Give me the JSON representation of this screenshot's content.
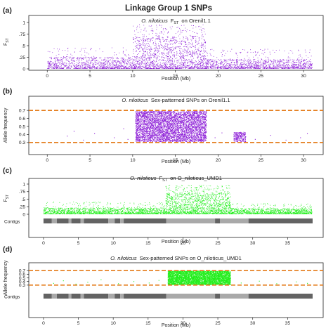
{
  "figure_title": "Linkage Group 1 SNPs",
  "colors": {
    "purple": "#8a19d6",
    "green": "#22ee1c",
    "orange": "#e47a18",
    "contig_dark": "#636363",
    "contig_light": "#a9a9a9"
  },
  "chart_data": [
    {
      "panel": "(a)",
      "type": "scatter",
      "title_italic": "O. niloticus",
      "title_rest": "on Orenil1.1",
      "ylabel": "F",
      "ylabel_sub": "ST",
      "xlabel": "Position (Mb)",
      "xlim": [
        -1.5,
        31.8
      ],
      "ylim": [
        0,
        1
      ],
      "xticks": [
        0,
        5,
        10,
        15,
        20,
        25,
        30
      ],
      "yticks": [
        0,
        0.25,
        0.5,
        0.75,
        1
      ],
      "ytick_labels": [
        "0",
        ".25",
        ".5",
        ".75",
        "1"
      ],
      "series_color": "purple",
      "density_profile": [
        {
          "range": [
            0,
            10
          ],
          "typical_max": 0.25,
          "peak_max": 0.45
        },
        {
          "range": [
            10,
            18.5
          ],
          "typical_max": 0.7,
          "peak_max": 0.95
        },
        {
          "range": [
            18.5,
            31
          ],
          "typical_max": 0.2,
          "peak_max": 0.42
        }
      ]
    },
    {
      "panel": "(b)",
      "type": "scatter",
      "title_italic": "O. niloticus",
      "title_rest": "Sex-patterned SNPs on Orenil1.1",
      "ylabel": "Allele frequency",
      "xlabel": "Position (Mb)",
      "xlim": [
        -1.5,
        31.8
      ],
      "ylim": [
        0.22,
        0.78
      ],
      "xticks": [
        0,
        5,
        10,
        15,
        20,
        25,
        30
      ],
      "yticks": [
        0.3,
        0.4,
        0.5,
        0.6,
        0.7
      ],
      "ytick_labels": [
        "0.3",
        "0.4",
        "0.5",
        "0.6",
        "0.7"
      ],
      "threshold_lines": [
        0.3,
        0.7
      ],
      "series_color": "purple",
      "dense_blocks": [
        {
          "x": [
            10.3,
            18.6
          ],
          "y": [
            0.31,
            0.69
          ]
        },
        {
          "x": [
            21.8,
            23.2
          ],
          "y": [
            0.31,
            0.43
          ]
        }
      ],
      "sparse_points": [
        [
          2.3,
          0.38
        ],
        [
          3.1,
          0.44
        ],
        [
          4.2,
          0.33
        ],
        [
          5.5,
          0.41
        ],
        [
          7.8,
          0.36
        ],
        [
          8.9,
          0.47
        ],
        [
          9.4,
          0.34
        ],
        [
          19.6,
          0.36
        ],
        [
          20.4,
          0.42
        ],
        [
          24.3,
          0.34
        ],
        [
          26.1,
          0.39
        ],
        [
          27.9,
          0.33
        ],
        [
          29.6,
          0.36
        ],
        [
          30.4,
          0.41
        ]
      ]
    },
    {
      "panel": "(c)",
      "type": "scatter",
      "title_italic": "O. niloticus",
      "title_rest": "on O_niloticus_UMD1",
      "ylabel": "F",
      "ylabel_sub": "ST",
      "xlabel": "Position (Mb)",
      "contigs_label": "Contigs",
      "xlim": [
        -1.3,
        39.5
      ],
      "ylim": [
        0,
        1
      ],
      "xticks": [
        0,
        5,
        10,
        15,
        20,
        25,
        30,
        35
      ],
      "yticks": [
        0,
        0.25,
        0.5,
        0.75,
        1
      ],
      "ytick_labels": [
        "0",
        ".25",
        ".5",
        ".75",
        "1"
      ],
      "series_color": "green",
      "density_profile": [
        {
          "range": [
            0,
            17.5
          ],
          "typical_max": 0.2,
          "peak_max": 0.4
        },
        {
          "range": [
            17.5,
            26.8
          ],
          "typical_max": 0.7,
          "peak_max": 0.95
        },
        {
          "range": [
            26.8,
            38.5
          ],
          "typical_max": 0.18,
          "peak_max": 0.35
        }
      ],
      "contigs": [
        {
          "start": 0.0,
          "end": 1.2,
          "shade": "dark"
        },
        {
          "start": 1.2,
          "end": 1.9,
          "shade": "light"
        },
        {
          "start": 1.9,
          "end": 3.6,
          "shade": "dark"
        },
        {
          "start": 3.6,
          "end": 4.0,
          "shade": "light"
        },
        {
          "start": 4.0,
          "end": 5.3,
          "shade": "dark"
        },
        {
          "start": 5.3,
          "end": 5.8,
          "shade": "light"
        },
        {
          "start": 5.8,
          "end": 9.3,
          "shade": "dark"
        },
        {
          "start": 9.3,
          "end": 10.2,
          "shade": "light"
        },
        {
          "start": 10.2,
          "end": 11.0,
          "shade": "dark"
        },
        {
          "start": 11.0,
          "end": 11.5,
          "shade": "light"
        },
        {
          "start": 11.5,
          "end": 17.6,
          "shade": "dark"
        },
        {
          "start": 17.6,
          "end": 24.6,
          "shade": "light"
        },
        {
          "start": 24.6,
          "end": 25.3,
          "shade": "dark"
        },
        {
          "start": 25.3,
          "end": 29.4,
          "shade": "light"
        },
        {
          "start": 29.4,
          "end": 38.6,
          "shade": "dark"
        }
      ]
    },
    {
      "panel": "(d)",
      "type": "scatter",
      "title_italic": "O. niloticus",
      "title_rest": "Sex-patterned SNPs on O_niloticus_UMD1",
      "ylabel": "Allele frequency",
      "xlabel": "Position (Mb)",
      "contigs_label": "Contigs",
      "xlim": [
        -1.3,
        39.5
      ],
      "ylim": [
        0.22,
        0.78
      ],
      "xticks": [
        0,
        5,
        10,
        15,
        20,
        25,
        30,
        35
      ],
      "yticks": [
        0.3,
        0.4,
        0.5,
        0.6,
        0.7
      ],
      "ytick_labels": [
        "0.3",
        "0.4",
        "0.5",
        "0.6",
        "0.7"
      ],
      "threshold_lines": [
        0.3,
        0.7
      ],
      "series_color": "green",
      "dense_blocks": [
        {
          "x": [
            17.8,
            26.8
          ],
          "y": [
            0.31,
            0.69
          ]
        }
      ],
      "sparse_points": [
        [
          1.4,
          0.35
        ],
        [
          2.8,
          0.42
        ],
        [
          4.6,
          0.33
        ],
        [
          6.3,
          0.38
        ],
        [
          8.2,
          0.45
        ],
        [
          10.7,
          0.34
        ],
        [
          12.9,
          0.4
        ],
        [
          15.1,
          0.36
        ],
        [
          16.5,
          0.43
        ],
        [
          28.3,
          0.36
        ],
        [
          30.9,
          0.41
        ],
        [
          33.4,
          0.34
        ],
        [
          36.2,
          0.39
        ],
        [
          37.8,
          0.35
        ]
      ],
      "contigs_same_as_panel": "(c)"
    }
  ]
}
